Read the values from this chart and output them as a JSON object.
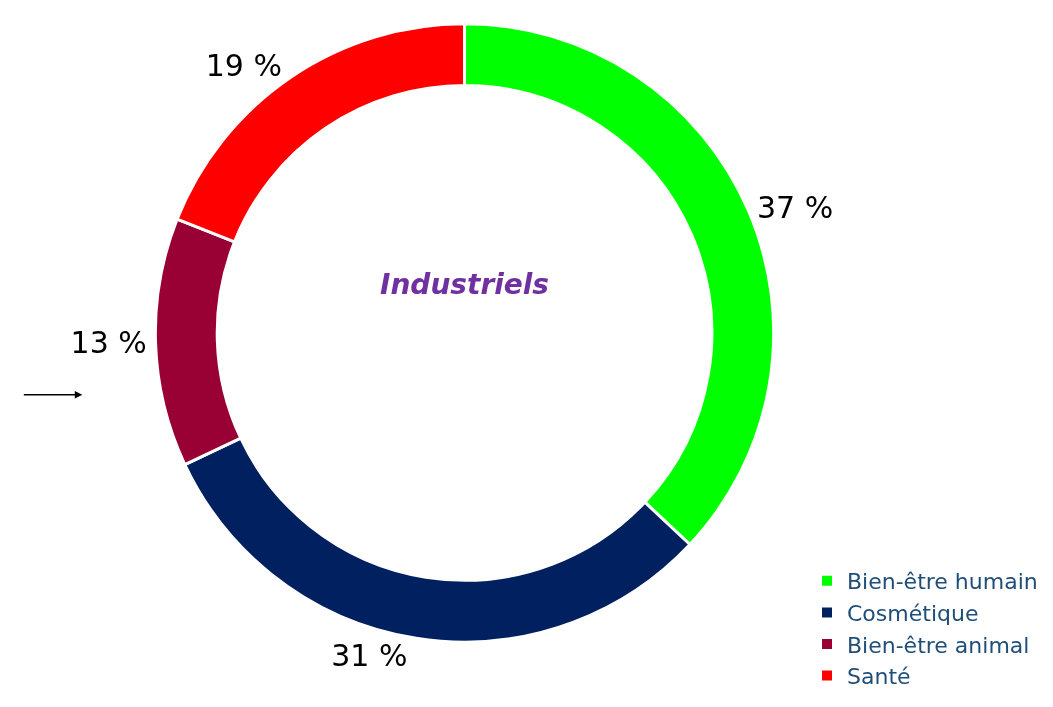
{
  "chart_data": {
    "type": "donut",
    "categories": [
      "Bien-être humain",
      "Cosmétique",
      "Bien-être animal",
      "Santé"
    ],
    "values": [
      37,
      31,
      13,
      19
    ],
    "colors": [
      "#00ff00",
      "#002060",
      "#990033",
      "#ff0000"
    ],
    "value_labels": [
      "37 %",
      "31 %",
      "13 %",
      "19 %"
    ],
    "annotations": [
      "Industriels"
    ],
    "legend": "bottom right"
  }
}
